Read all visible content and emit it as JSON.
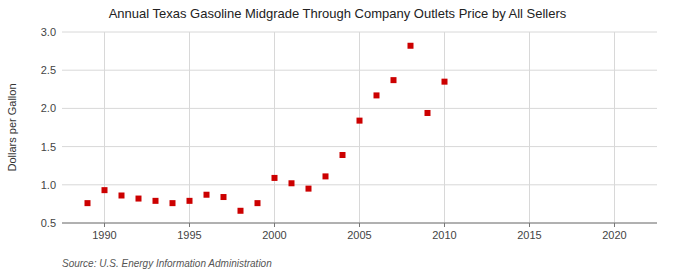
{
  "chart_data": {
    "type": "scatter",
    "title": "Annual Texas Gasoline Midgrade Through Company Outlets Price by All Sellers",
    "y_label": "Dollars per Gallon",
    "annotations": [
      "Source: U.S. Energy Information Administration"
    ],
    "x": [
      1989,
      1990,
      1991,
      1992,
      1993,
      1994,
      1995,
      1996,
      1997,
      1998,
      1999,
      2000,
      2001,
      2002,
      2003,
      2004,
      2005,
      2006,
      2007,
      2008,
      2009,
      2010
    ],
    "values": [
      0.76,
      0.93,
      0.86,
      0.82,
      0.79,
      0.76,
      0.79,
      0.87,
      0.84,
      0.66,
      0.76,
      1.09,
      1.02,
      0.95,
      1.11,
      1.39,
      1.84,
      2.17,
      2.37,
      2.82,
      1.94,
      2.35
    ],
    "color": "#cc0000",
    "marker": "square",
    "xlim": [
      1987.5,
      2022.5
    ],
    "ylim": [
      0.5,
      3.0
    ],
    "xticks": [
      1990,
      1995,
      2000,
      2005,
      2010,
      2015,
      2020
    ],
    "yticks": [
      0.5,
      {
        "value": 1,
        "label": "1.0"
      },
      1.5,
      {
        "value": 2,
        "label": "2.0"
      },
      2.5,
      {
        "value": 3,
        "label": "3.0"
      }
    ],
    "grid": true
  }
}
